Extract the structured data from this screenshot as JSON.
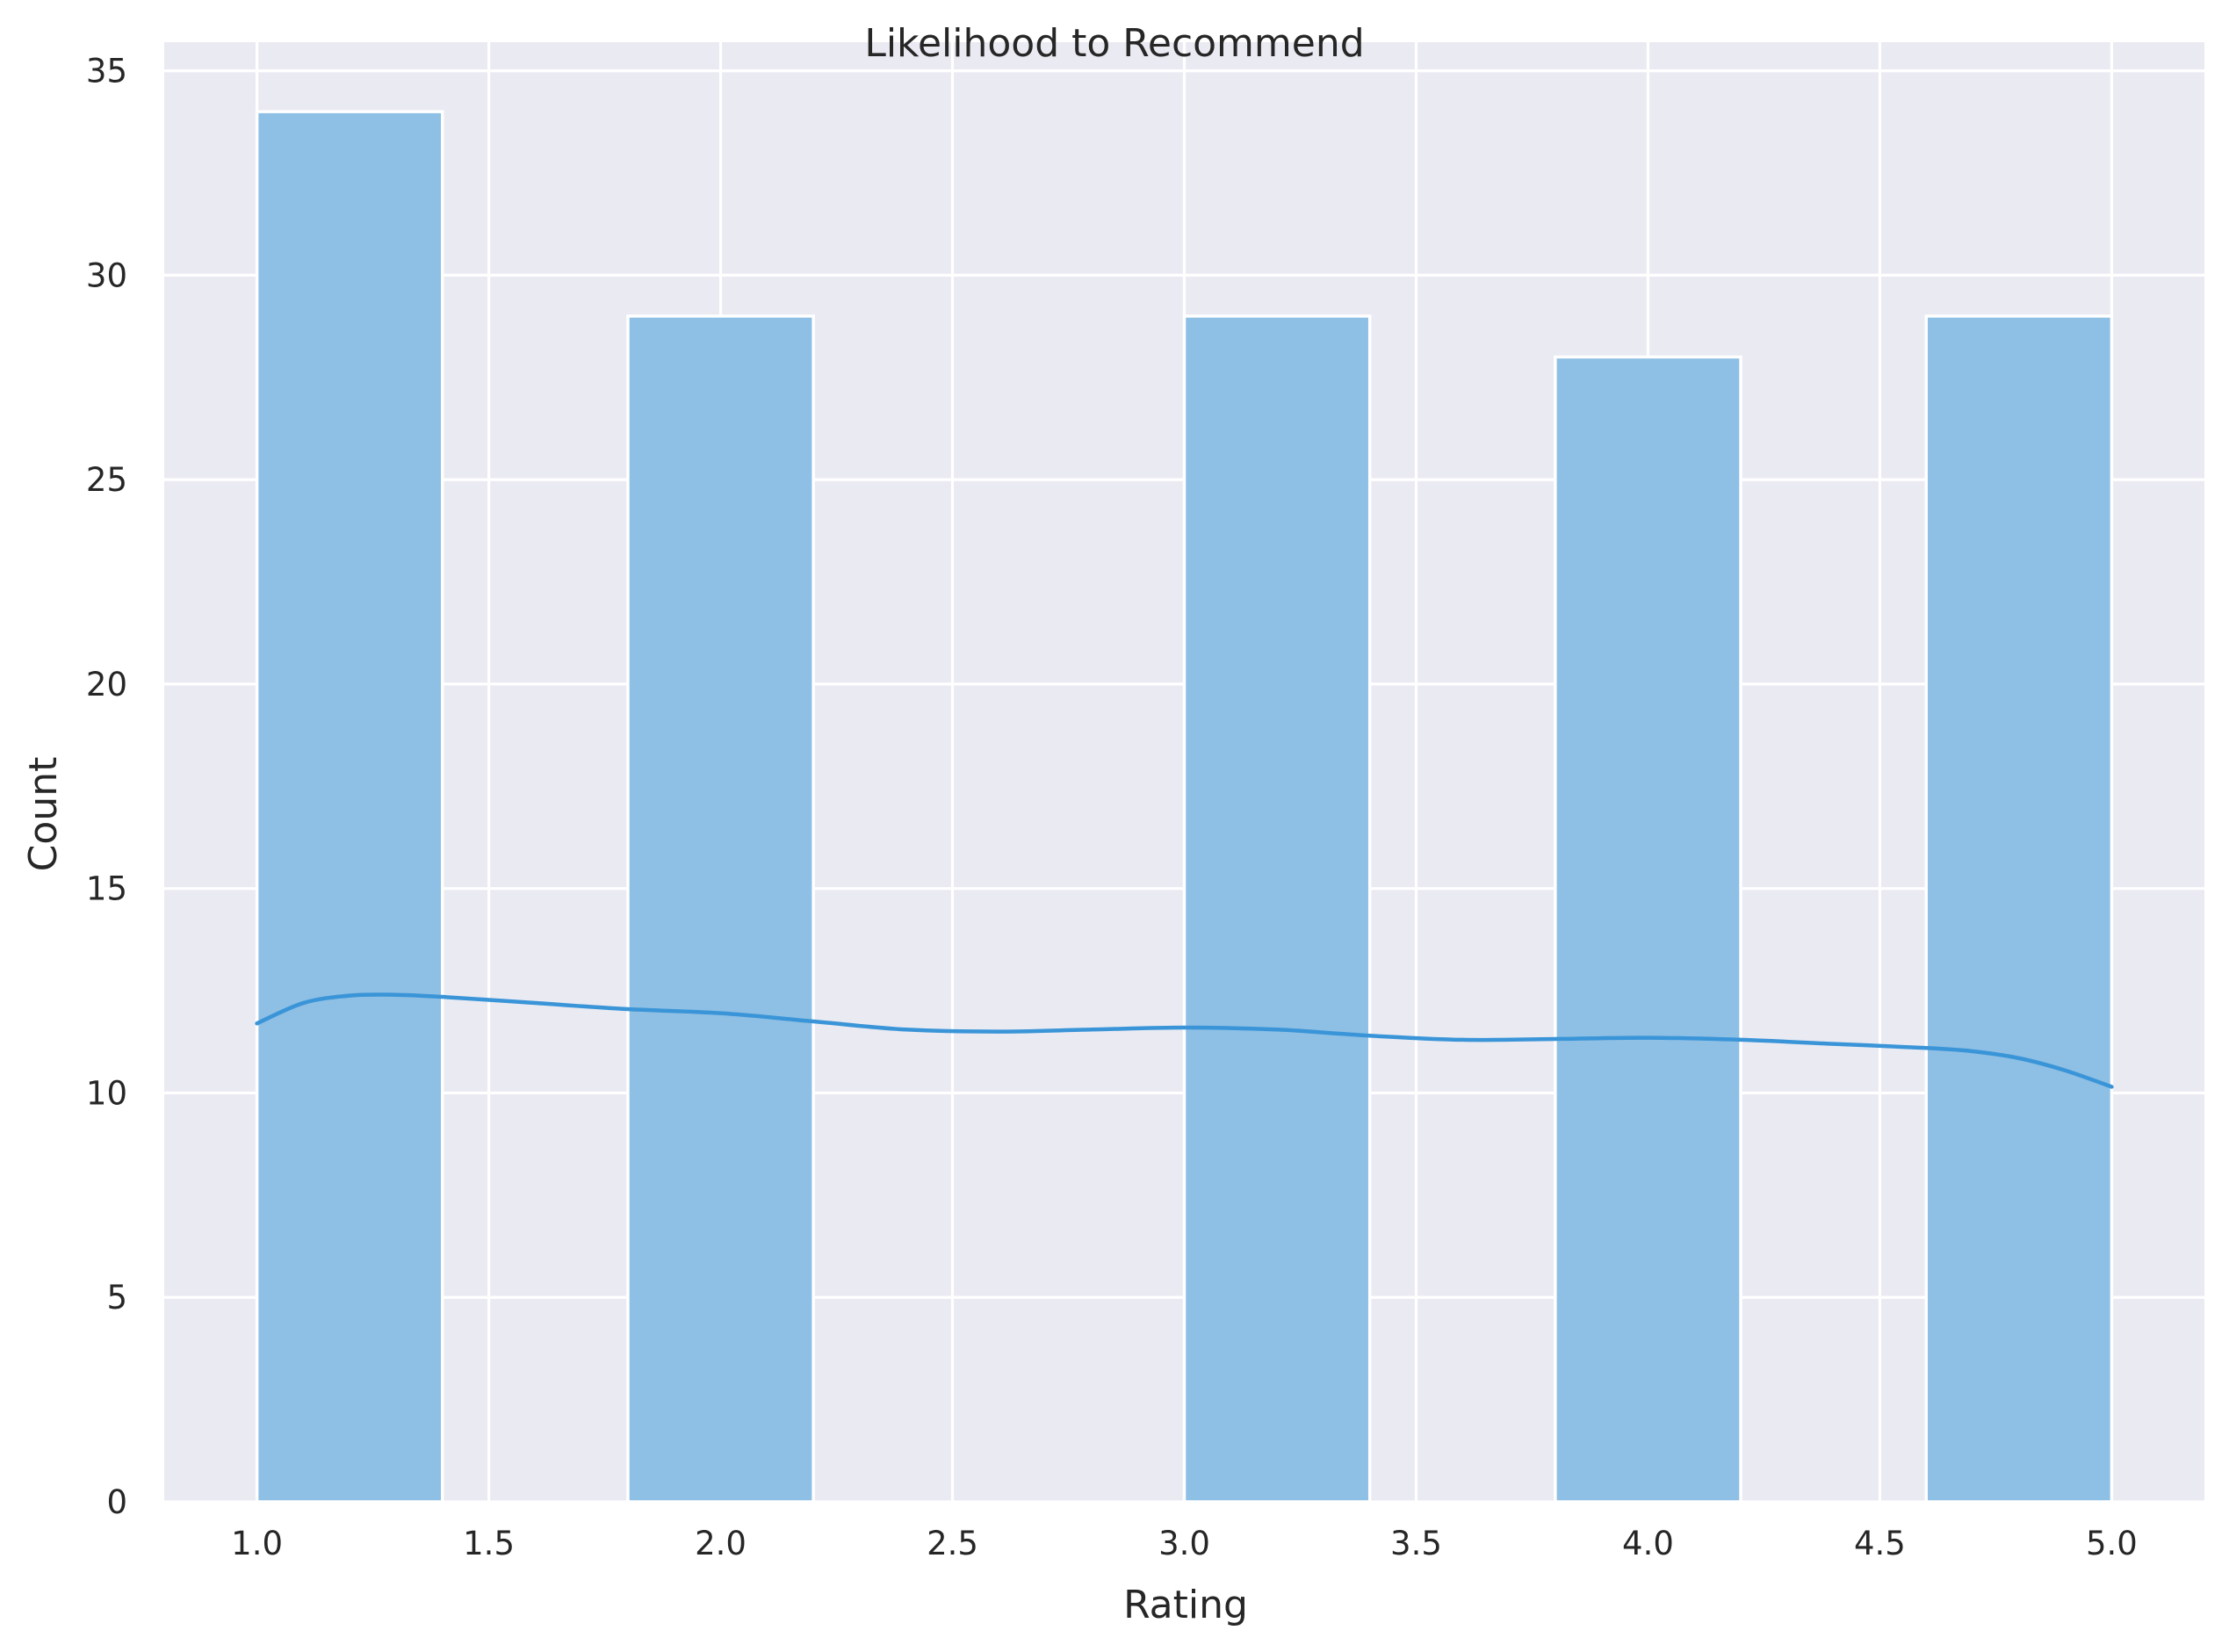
{
  "chart_data": {
    "type": "bar",
    "title": "Likelihood to Recommend",
    "xlabel": "Rating",
    "ylabel": "Count",
    "bins": [
      {
        "x0": 1.0,
        "x1": 1.4,
        "count": 34
      },
      {
        "x0": 1.4,
        "x1": 1.8,
        "count": 0
      },
      {
        "x0": 1.8,
        "x1": 2.2,
        "count": 29
      },
      {
        "x0": 2.2,
        "x1": 2.6,
        "count": 0
      },
      {
        "x0": 2.6,
        "x1": 3.0,
        "count": 0
      },
      {
        "x0": 3.0,
        "x1": 3.4,
        "count": 29
      },
      {
        "x0": 3.4,
        "x1": 3.8,
        "count": 0
      },
      {
        "x0": 3.8,
        "x1": 4.2,
        "count": 28
      },
      {
        "x0": 4.2,
        "x1": 4.6,
        "count": 0
      },
      {
        "x0": 4.6,
        "x1": 5.0,
        "count": 29
      }
    ],
    "kde": {
      "x": [
        1.0,
        1.1,
        1.2,
        1.3,
        1.4,
        1.6,
        1.8,
        2.0,
        2.2,
        2.4,
        2.6,
        2.8,
        3.0,
        3.2,
        3.4,
        3.6,
        3.8,
        4.0,
        4.2,
        4.4,
        4.6,
        4.7,
        4.8,
        4.9,
        5.0
      ],
      "y": [
        11.7,
        12.2,
        12.38,
        12.4,
        12.35,
        12.2,
        12.05,
        11.95,
        11.75,
        11.55,
        11.5,
        11.55,
        11.6,
        11.55,
        11.4,
        11.3,
        11.32,
        11.35,
        11.3,
        11.2,
        11.1,
        11.02,
        10.85,
        10.55,
        10.15
      ]
    },
    "xticks": [
      "1.0",
      "1.5",
      "2.0",
      "2.5",
      "3.0",
      "3.5",
      "4.0",
      "4.5",
      "5.0"
    ],
    "yticks": [
      "0",
      "5",
      "10",
      "15",
      "20",
      "25",
      "30",
      "35"
    ],
    "xlim": [
      0.8,
      5.2
    ],
    "ylim": [
      0,
      35.7
    ],
    "grid": true,
    "colors": {
      "background": "#eaeaf2",
      "grid": "#ffffff",
      "bar_fill": "#8ebfe4",
      "bar_edge": "#ffffff",
      "kde_line": "#3a95d8"
    }
  }
}
